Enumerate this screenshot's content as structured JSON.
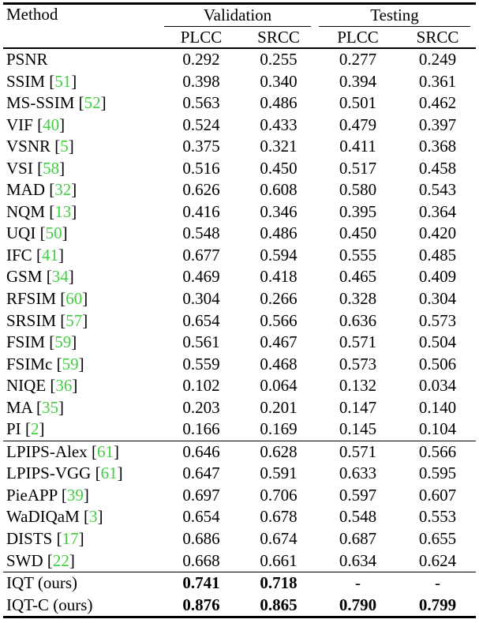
{
  "colors": {
    "background": "#ffffff",
    "text": "#000000",
    "reference": "#3fcf3f",
    "rule": "#000000"
  },
  "table": {
    "header": {
      "method": "Method",
      "groups": [
        {
          "label": "Validation",
          "columns": [
            "PLCC",
            "SRCC"
          ]
        },
        {
          "label": "Testing",
          "columns": [
            "PLCC",
            "SRCC"
          ]
        }
      ]
    },
    "sections": [
      {
        "rows": [
          {
            "method": "PSNR",
            "ref": null,
            "bold_values": false,
            "values": [
              "0.292",
              "0.255",
              "0.277",
              "0.249"
            ]
          },
          {
            "method": "SSIM",
            "ref": "51",
            "bold_values": false,
            "values": [
              "0.398",
              "0.340",
              "0.394",
              "0.361"
            ]
          },
          {
            "method": "MS-SSIM",
            "ref": "52",
            "bold_values": false,
            "values": [
              "0.563",
              "0.486",
              "0.501",
              "0.462"
            ]
          },
          {
            "method": "VIF",
            "ref": "40",
            "bold_values": false,
            "values": [
              "0.524",
              "0.433",
              "0.479",
              "0.397"
            ]
          },
          {
            "method": "VSNR",
            "ref": "5",
            "bold_values": false,
            "values": [
              "0.375",
              "0.321",
              "0.411",
              "0.368"
            ]
          },
          {
            "method": "VSI",
            "ref": "58",
            "bold_values": false,
            "values": [
              "0.516",
              "0.450",
              "0.517",
              "0.458"
            ]
          },
          {
            "method": "MAD",
            "ref": "32",
            "bold_values": false,
            "values": [
              "0.626",
              "0.608",
              "0.580",
              "0.543"
            ]
          },
          {
            "method": "NQM",
            "ref": "13",
            "bold_values": false,
            "values": [
              "0.416",
              "0.346",
              "0.395",
              "0.364"
            ]
          },
          {
            "method": "UQI",
            "ref": "50",
            "bold_values": false,
            "values": [
              "0.548",
              "0.486",
              "0.450",
              "0.420"
            ]
          },
          {
            "method": "IFC",
            "ref": "41",
            "bold_values": false,
            "values": [
              "0.677",
              "0.594",
              "0.555",
              "0.485"
            ]
          },
          {
            "method": "GSM",
            "ref": "34",
            "bold_values": false,
            "values": [
              "0.469",
              "0.418",
              "0.465",
              "0.409"
            ]
          },
          {
            "method": "RFSIM",
            "ref": "60",
            "bold_values": false,
            "values": [
              "0.304",
              "0.266",
              "0.328",
              "0.304"
            ]
          },
          {
            "method": "SRSIM",
            "ref": "57",
            "bold_values": false,
            "values": [
              "0.654",
              "0.566",
              "0.636",
              "0.573"
            ]
          },
          {
            "method": "FSIM",
            "ref": "59",
            "bold_values": false,
            "values": [
              "0.561",
              "0.467",
              "0.571",
              "0.504"
            ]
          },
          {
            "method": "FSIMc",
            "ref": "59",
            "bold_values": false,
            "values": [
              "0.559",
              "0.468",
              "0.573",
              "0.506"
            ]
          },
          {
            "method": "NIQE",
            "ref": "36",
            "bold_values": false,
            "values": [
              "0.102",
              "0.064",
              "0.132",
              "0.034"
            ]
          },
          {
            "method": "MA",
            "ref": "35",
            "bold_values": false,
            "values": [
              "0.203",
              "0.201",
              "0.147",
              "0.140"
            ]
          },
          {
            "method": "PI",
            "ref": "2",
            "bold_values": false,
            "values": [
              "0.166",
              "0.169",
              "0.145",
              "0.104"
            ]
          }
        ]
      },
      {
        "rows": [
          {
            "method": "LPIPS-Alex",
            "ref": "61",
            "bold_values": false,
            "values": [
              "0.646",
              "0.628",
              "0.571",
              "0.566"
            ]
          },
          {
            "method": "LPIPS-VGG",
            "ref": "61",
            "bold_values": false,
            "values": [
              "0.647",
              "0.591",
              "0.633",
              "0.595"
            ]
          },
          {
            "method": "PieAPP",
            "ref": "39",
            "bold_values": false,
            "values": [
              "0.697",
              "0.706",
              "0.597",
              "0.607"
            ]
          },
          {
            "method": "WaDIQaM",
            "ref": "3",
            "bold_values": false,
            "values": [
              "0.654",
              "0.678",
              "0.548",
              "0.553"
            ]
          },
          {
            "method": "DISTS",
            "ref": "17",
            "bold_values": false,
            "values": [
              "0.686",
              "0.674",
              "0.687",
              "0.655"
            ]
          },
          {
            "method": "SWD",
            "ref": "22",
            "bold_values": false,
            "values": [
              "0.668",
              "0.661",
              "0.634",
              "0.624"
            ]
          }
        ]
      },
      {
        "rows": [
          {
            "method": "IQT (ours)",
            "ref": null,
            "bold_values": true,
            "values": [
              "0.741",
              "0.718",
              "-",
              "-"
            ]
          },
          {
            "method": "IQT-C (ours)",
            "ref": null,
            "bold_values": true,
            "values": [
              "0.876",
              "0.865",
              "0.790",
              "0.799"
            ]
          }
        ]
      }
    ]
  }
}
